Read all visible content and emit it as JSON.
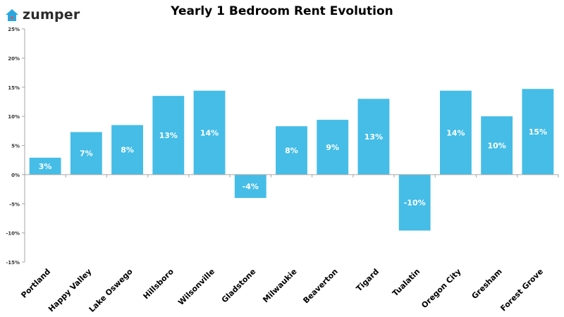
{
  "brand": {
    "name": "zumper",
    "icon": "house-icon"
  },
  "colors": {
    "bar": "#45bde7",
    "brand_blue": "#29a8e0",
    "brand_red": "#e8504a",
    "axis": "#a6a6a6"
  },
  "chart_data": {
    "type": "bar",
    "title": "Yearly 1 Bedroom Rent Evolution",
    "xlabel": "",
    "ylabel": "",
    "categories": [
      "Portland",
      "Happy Valley",
      "Lake Oswego",
      "Hillsboro",
      "Wilsonville",
      "Gladstone",
      "Milwaukie",
      "Beaverton",
      "Tigard",
      "Tualatin",
      "Oregon City",
      "Gresham",
      "Forest Grove"
    ],
    "values": [
      2.9,
      7.3,
      8.5,
      13.5,
      14.4,
      -4.0,
      8.3,
      9.4,
      13.0,
      -9.6,
      14.4,
      10.0,
      14.7
    ],
    "data_labels": [
      "3%",
      "7%",
      "8%",
      "13%",
      "14%",
      "-4%",
      "8%",
      "9%",
      "13%",
      "-10%",
      "14%",
      "10%",
      "15%"
    ],
    "ylim": [
      -15,
      25
    ],
    "yticks": [
      25,
      20,
      15,
      10,
      5,
      0,
      -5,
      -10,
      -15
    ],
    "ytick_labels": [
      "25%",
      "20%",
      "15%",
      "10%",
      "5%",
      "0%",
      "-5%",
      "-10%",
      "-15%"
    ],
    "grid": false,
    "legend": "none"
  }
}
